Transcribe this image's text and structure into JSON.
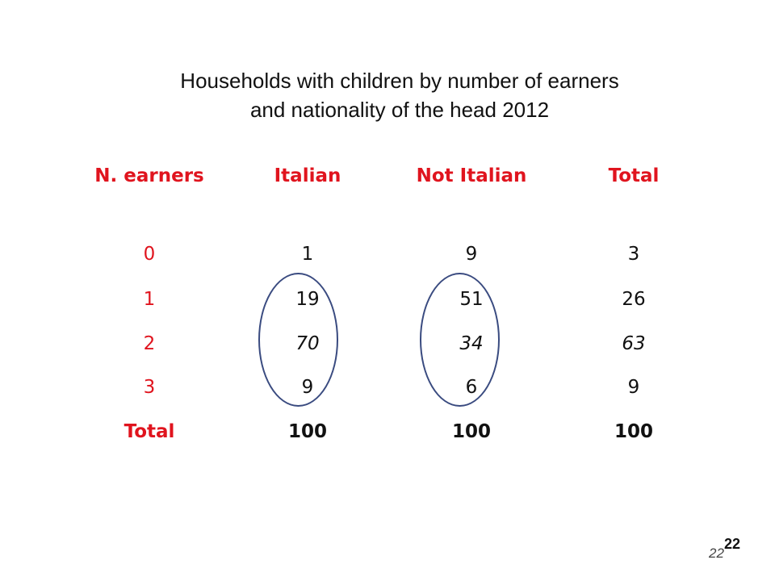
{
  "title": {
    "line1": "Households with children by number of earners",
    "line2": "and nationality of the head 2012"
  },
  "table": {
    "headers": [
      "N. earners",
      "Italian",
      "Not Italian",
      "Total"
    ],
    "rows": [
      {
        "earners": "0",
        "italian": "1",
        "not_italian": "9",
        "total": "3"
      },
      {
        "earners": "1",
        "italian": "19",
        "not_italian": "51",
        "total": "26"
      },
      {
        "earners": "2",
        "italian": "70",
        "not_italian": "34",
        "total": "63"
      },
      {
        "earners": "3",
        "italian": "9",
        "not_italian": "6",
        "total": "9"
      },
      {
        "earners": "Total",
        "italian": "100",
        "not_italian": "100",
        "total": "100"
      }
    ]
  },
  "slide_number": {
    "primary": "22",
    "secondary": "22"
  },
  "colors": {
    "header_red": "#e0141e",
    "circle": "#3a4b80",
    "text": "#111111"
  }
}
